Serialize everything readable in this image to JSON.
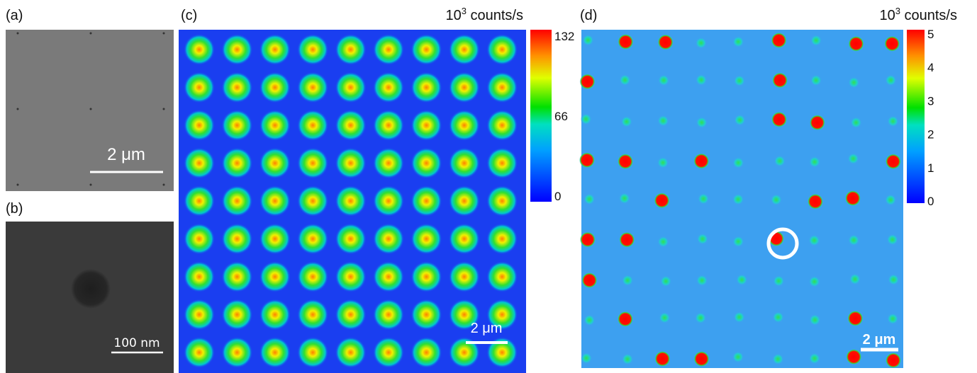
{
  "panels": [
    {
      "label": "(a)",
      "scale_bar": "2 μm"
    },
    {
      "label": "(b)",
      "scale_bar": "100 nm"
    },
    {
      "label": "(c)",
      "unit_base": "10",
      "unit_exp": "3",
      "unit_rest": " counts/s",
      "colorbar_ticks": [
        "132",
        "66",
        "0"
      ],
      "scale_bar": "2 μm"
    },
    {
      "label": "(d)",
      "unit_base": "10",
      "unit_exp": "3",
      "unit_rest": " counts/s",
      "colorbar_ticks": [
        "5",
        "4",
        "3",
        "2",
        "1",
        "0"
      ],
      "scale_bar": "2 μm"
    }
  ]
}
